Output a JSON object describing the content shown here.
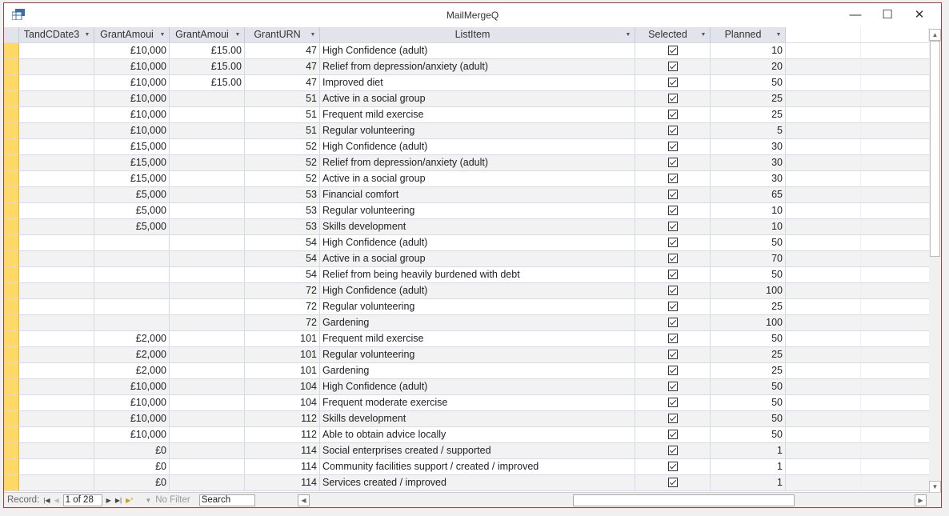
{
  "window": {
    "title": "MailMergeQ"
  },
  "columns": [
    "TandCDate3",
    "GrantAmoui",
    "GrantAmoui",
    "GrantURN",
    "ListItem",
    "Selected",
    "Planned"
  ],
  "rows": [
    [
      "",
      "£10,000",
      "£15.00",
      "47",
      "High Confidence (adult)",
      true,
      "10"
    ],
    [
      "",
      "£10,000",
      "£15.00",
      "47",
      "Relief from depression/anxiety (adult)",
      true,
      "20"
    ],
    [
      "",
      "£10,000",
      "£15.00",
      "47",
      "Improved diet",
      true,
      "50"
    ],
    [
      "",
      "£10,000",
      "",
      "51",
      "Active in a social group",
      true,
      "25"
    ],
    [
      "",
      "£10,000",
      "",
      "51",
      "Frequent mild exercise",
      true,
      "25"
    ],
    [
      "",
      "£10,000",
      "",
      "51",
      "Regular volunteering",
      true,
      "5"
    ],
    [
      "",
      "£15,000",
      "",
      "52",
      "High Confidence (adult)",
      true,
      "30"
    ],
    [
      "",
      "£15,000",
      "",
      "52",
      "Relief from depression/anxiety (adult)",
      true,
      "30"
    ],
    [
      "",
      "£15,000",
      "",
      "52",
      "Active in a social group",
      true,
      "30"
    ],
    [
      "",
      "£5,000",
      "",
      "53",
      "Financial comfort",
      true,
      "65"
    ],
    [
      "",
      "£5,000",
      "",
      "53",
      "Regular volunteering",
      true,
      "10"
    ],
    [
      "",
      "£5,000",
      "",
      "53",
      "Skills development",
      true,
      "10"
    ],
    [
      "",
      "",
      "",
      "54",
      "High Confidence (adult)",
      true,
      "50"
    ],
    [
      "",
      "",
      "",
      "54",
      "Active in a social group",
      true,
      "70"
    ],
    [
      "",
      "",
      "",
      "54",
      "Relief from being heavily burdened with debt",
      true,
      "50"
    ],
    [
      "",
      "",
      "",
      "72",
      "High Confidence (adult)",
      true,
      "100"
    ],
    [
      "",
      "",
      "",
      "72",
      "Regular volunteering",
      true,
      "25"
    ],
    [
      "",
      "",
      "",
      "72",
      "Gardening",
      true,
      "100"
    ],
    [
      "",
      "£2,000",
      "",
      "101",
      "Frequent mild exercise",
      true,
      "50"
    ],
    [
      "",
      "£2,000",
      "",
      "101",
      "Regular volunteering",
      true,
      "25"
    ],
    [
      "",
      "£2,000",
      "",
      "101",
      "Gardening",
      true,
      "25"
    ],
    [
      "",
      "£10,000",
      "",
      "104",
      "High Confidence (adult)",
      true,
      "50"
    ],
    [
      "",
      "£10,000",
      "",
      "104",
      "Frequent moderate exercise",
      true,
      "50"
    ],
    [
      "",
      "£10,000",
      "",
      "112",
      "Skills development",
      true,
      "50"
    ],
    [
      "",
      "£10,000",
      "",
      "112",
      "Able to obtain advice locally",
      true,
      "50"
    ],
    [
      "",
      "£0",
      "",
      "114",
      "Social enterprises created / supported",
      true,
      "1"
    ],
    [
      "",
      "£0",
      "",
      "114",
      "Community facilities support / created / improved",
      true,
      "1"
    ],
    [
      "",
      "£0",
      "",
      "114",
      "Services created / improved",
      true,
      "1"
    ]
  ],
  "status": {
    "record_label": "Record:",
    "record_value": "1 of 28",
    "filter_label": "No Filter",
    "search_value": "Search"
  },
  "colors": {
    "selector": "#ffd966",
    "border": "#b03a3a"
  }
}
